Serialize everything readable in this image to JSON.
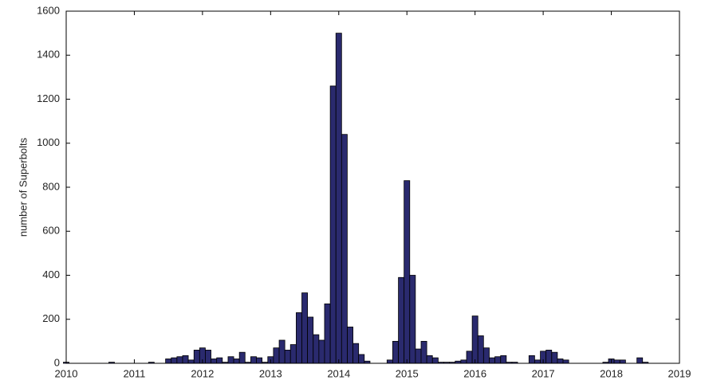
{
  "chart_data": {
    "type": "bar",
    "y_label": "number of Superbolts",
    "x": [
      2010,
      2010.083,
      2010.167,
      2010.25,
      2010.333,
      2010.417,
      2010.5,
      2010.583,
      2010.667,
      2010.75,
      2010.833,
      2010.917,
      2011,
      2011.083,
      2011.167,
      2011.25,
      2011.333,
      2011.417,
      2011.5,
      2011.583,
      2011.667,
      2011.75,
      2011.833,
      2011.917,
      2012,
      2012.083,
      2012.167,
      2012.25,
      2012.333,
      2012.417,
      2012.5,
      2012.583,
      2012.667,
      2012.75,
      2012.833,
      2012.917,
      2013,
      2013.083,
      2013.167,
      2013.25,
      2013.333,
      2013.417,
      2013.5,
      2013.583,
      2013.667,
      2013.75,
      2013.833,
      2013.917,
      2014,
      2014.083,
      2014.167,
      2014.25,
      2014.333,
      2014.417,
      2014.5,
      2014.583,
      2014.667,
      2014.75,
      2014.833,
      2014.917,
      2015,
      2015.083,
      2015.167,
      2015.25,
      2015.333,
      2015.417,
      2015.5,
      2015.583,
      2015.667,
      2015.75,
      2015.833,
      2015.917,
      2016,
      2016.083,
      2016.167,
      2016.25,
      2016.333,
      2016.417,
      2016.5,
      2016.583,
      2016.667,
      2016.75,
      2016.833,
      2016.917,
      2017,
      2017.083,
      2017.167,
      2017.25,
      2017.333,
      2017.417,
      2017.5,
      2017.583,
      2017.667,
      2017.75,
      2017.833,
      2017.917,
      2018,
      2018.083,
      2018.167,
      2018.25,
      2018.333,
      2018.417,
      2018.5,
      2018.583,
      2018.667,
      2018.75,
      2018.833,
      2018.917
    ],
    "values": [
      5,
      0,
      0,
      0,
      0,
      0,
      0,
      0,
      5,
      0,
      0,
      0,
      0,
      0,
      0,
      5,
      0,
      0,
      20,
      25,
      30,
      35,
      15,
      60,
      70,
      60,
      20,
      25,
      5,
      30,
      20,
      50,
      5,
      30,
      25,
      5,
      30,
      70,
      105,
      60,
      85,
      230,
      320,
      210,
      130,
      105,
      270,
      1260,
      1500,
      1040,
      165,
      90,
      40,
      10,
      0,
      0,
      0,
      15,
      100,
      390,
      830,
      400,
      65,
      100,
      35,
      25,
      5,
      5,
      5,
      10,
      15,
      55,
      215,
      125,
      70,
      25,
      30,
      35,
      5,
      5,
      0,
      0,
      35,
      15,
      55,
      60,
      50,
      20,
      15,
      0,
      0,
      0,
      0,
      0,
      0,
      5,
      20,
      15,
      15,
      0,
      0,
      25,
      5,
      0,
      0,
      0,
      0,
      0
    ],
    "color": "#2a2a6e",
    "xlim": [
      2010,
      2019
    ],
    "xticks": [
      2010,
      2011,
      2012,
      2013,
      2014,
      2015,
      2016,
      2017,
      2018,
      2019
    ],
    "ylim": [
      0,
      1600
    ],
    "yticks": [
      0,
      200,
      400,
      600,
      800,
      1000,
      1200,
      1400,
      1600
    ]
  }
}
